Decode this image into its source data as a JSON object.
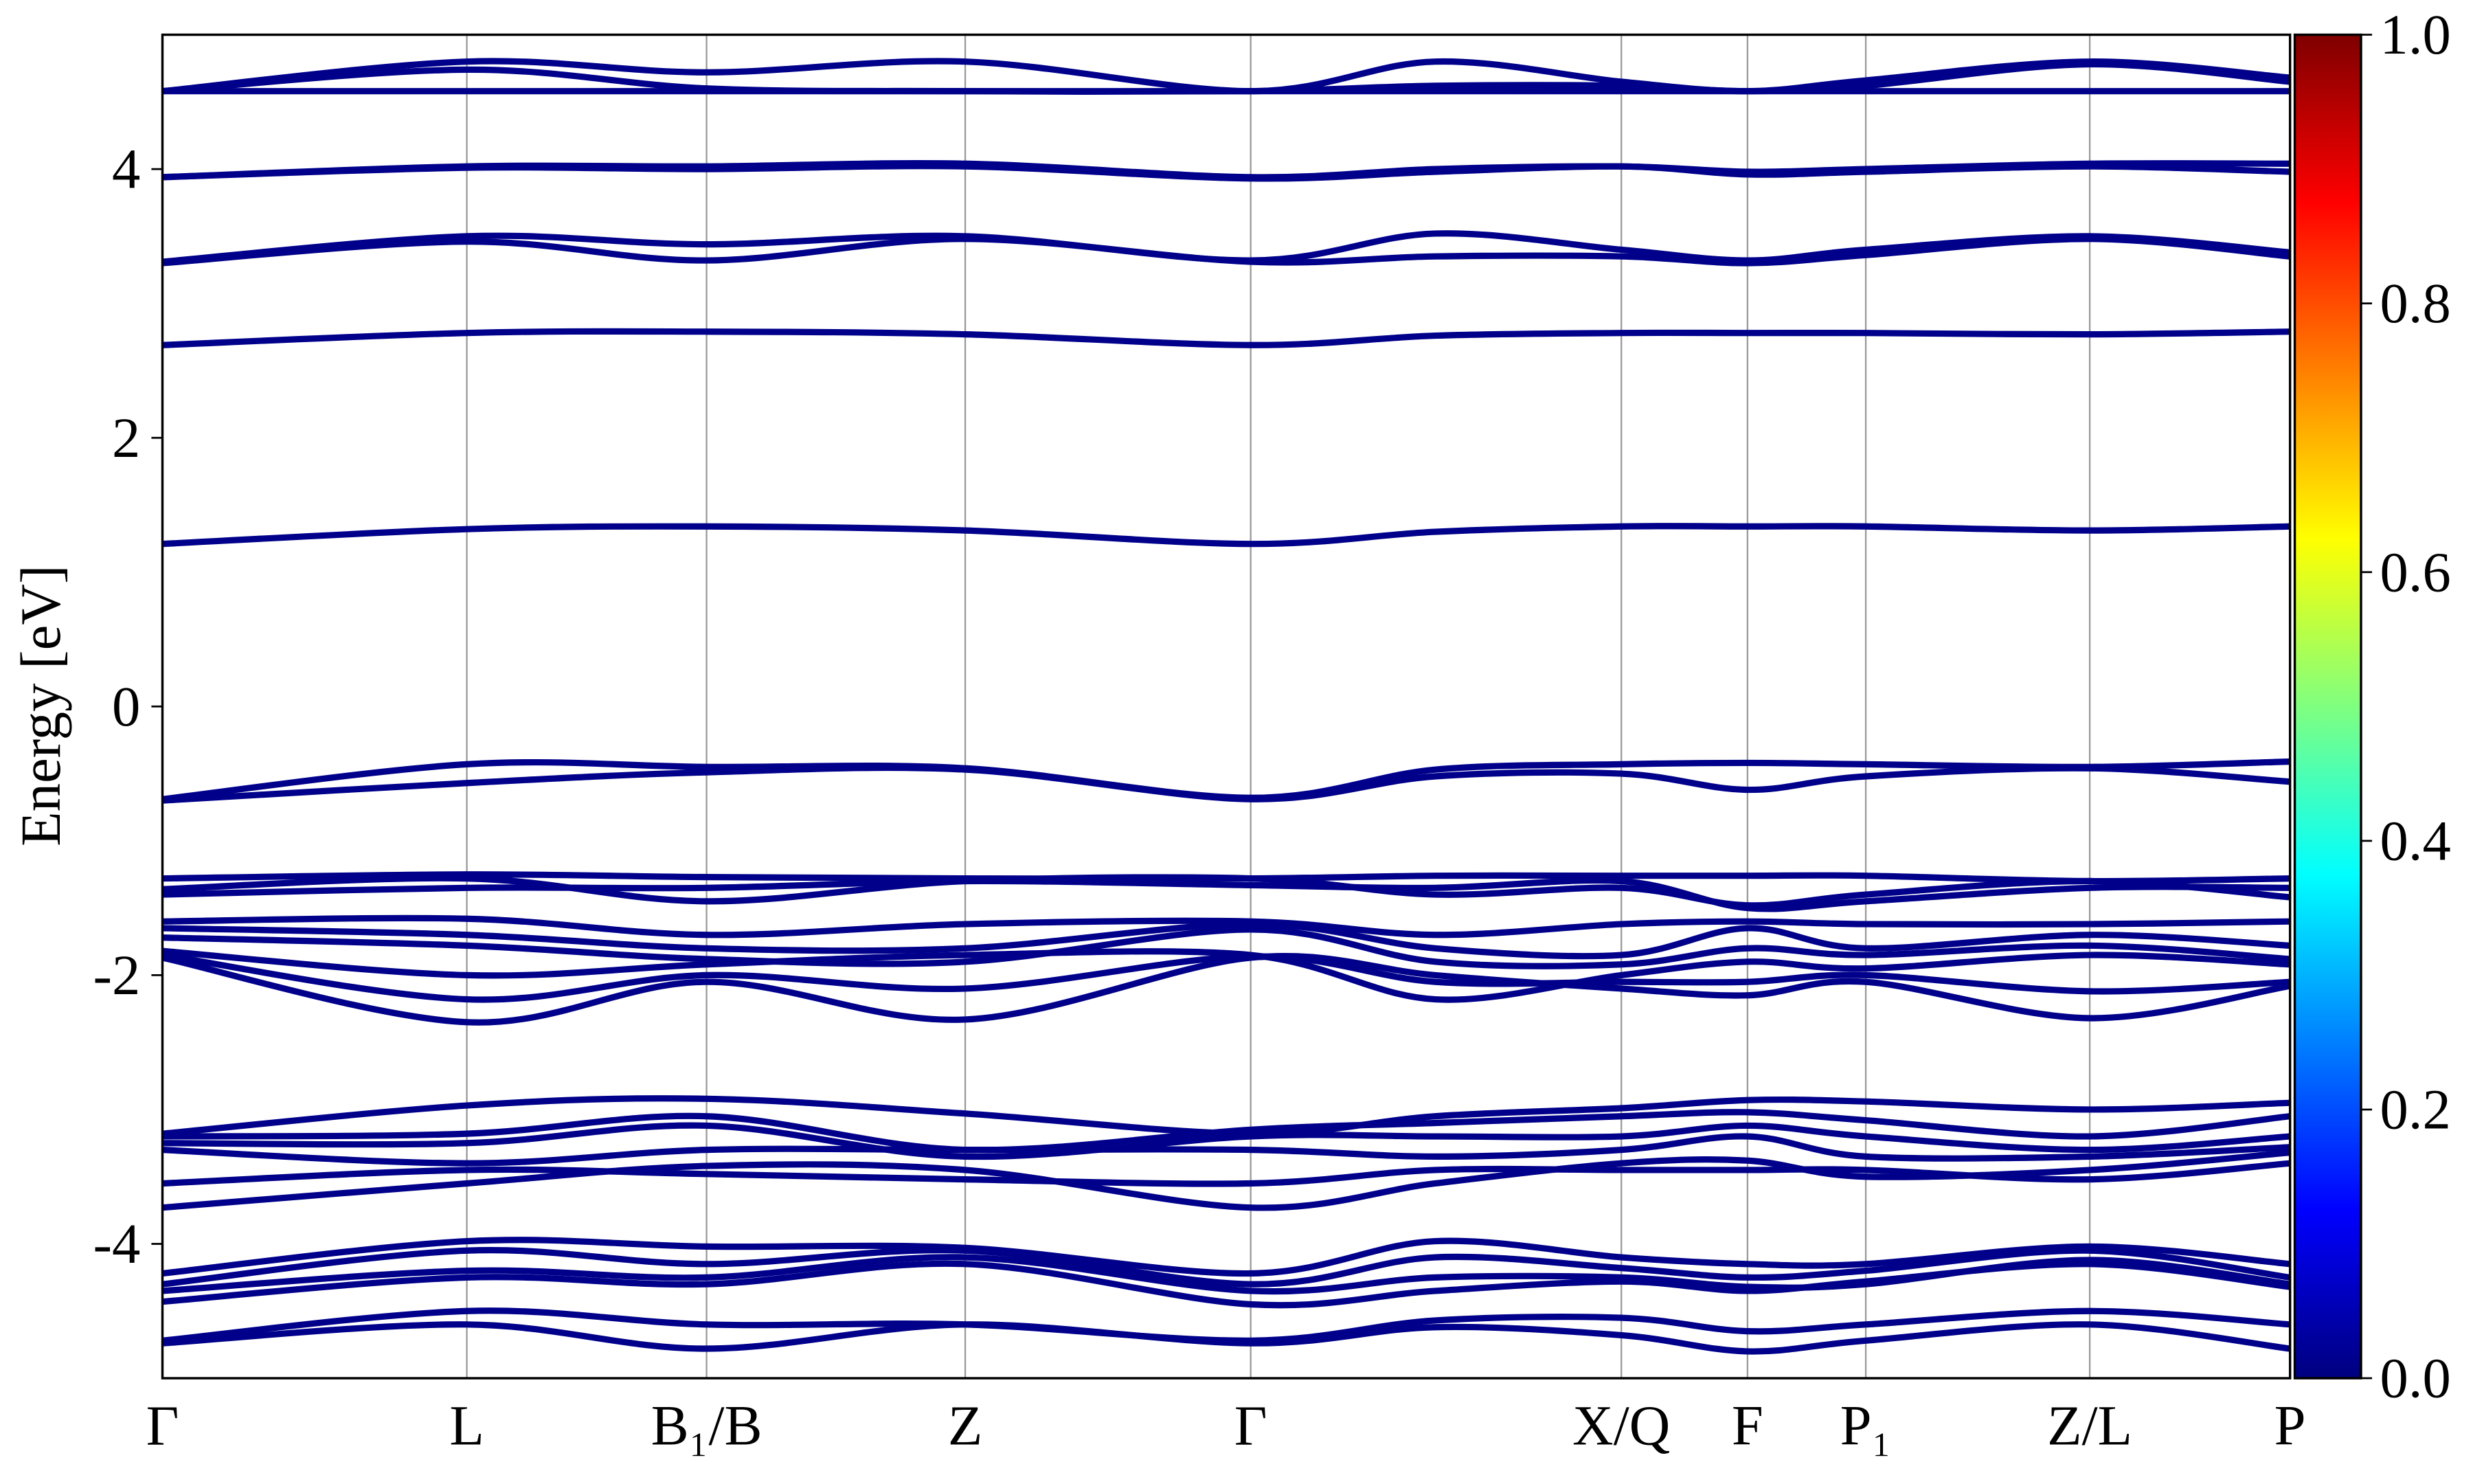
{
  "chart_data": {
    "type": "line",
    "y_label": "Energy [eV]",
    "x": [
      0,
      1.93,
      3.45,
      5.09,
      6.9,
      8.07,
      9.25,
      10.05,
      10.8,
      12.22,
      13.49
    ],
    "xlim": [
      0,
      13.49
    ],
    "xticks": [
      {
        "value": 0,
        "label": "Γ"
      },
      {
        "value": 1.93,
        "label": "L"
      },
      {
        "value": 3.45,
        "label": "B₁/B"
      },
      {
        "value": 5.09,
        "label": "Z"
      },
      {
        "value": 6.9,
        "label": "Γ"
      },
      {
        "value": 9.25,
        "label": "X/Q"
      },
      {
        "value": 10.05,
        "label": "F"
      },
      {
        "value": 10.8,
        "label": "P₁"
      },
      {
        "value": 12.22,
        "label": "Z/L"
      },
      {
        "value": 13.49,
        "label": "P"
      }
    ],
    "ylim": [
      -5,
      5
    ],
    "yticks": [
      -4,
      -2,
      0,
      2,
      4
    ],
    "color": "#00008b",
    "colorbar": {
      "colormap": "jet",
      "lim": [
        0,
        1
      ],
      "ticks": [
        {
          "value": 0,
          "label": "0.0"
        },
        {
          "value": 0.2,
          "label": "0.2"
        },
        {
          "value": 0.4,
          "label": "0.4"
        },
        {
          "value": 0.6,
          "label": "0.6"
        },
        {
          "value": 0.8,
          "label": "0.8"
        },
        {
          "value": 1,
          "label": "1.0"
        }
      ]
    },
    "series": [
      {
        "values": [
          4.58,
          4.8,
          4.72,
          4.8,
          4.58,
          4.8,
          4.65,
          4.58,
          4.66,
          4.8,
          4.68
        ]
      },
      {
        "values": [
          4.58,
          4.74,
          4.6,
          4.58,
          4.58,
          4.62,
          4.62,
          4.58,
          4.62,
          4.78,
          4.65
        ]
      },
      {
        "values": [
          4.58,
          4.58,
          4.58,
          4.58,
          4.58,
          4.58,
          4.58,
          4.58,
          4.58,
          4.58,
          4.58
        ]
      },
      {
        "values": [
          3.94,
          4.02,
          4.02,
          4.04,
          3.94,
          4.0,
          4.02,
          3.98,
          4.0,
          4.04,
          4.04
        ]
      },
      {
        "values": [
          3.94,
          4.01,
          4.0,
          4.02,
          3.93,
          3.98,
          4.02,
          3.96,
          3.98,
          4.02,
          3.98
        ]
      },
      {
        "values": [
          3.31,
          3.5,
          3.44,
          3.5,
          3.32,
          3.52,
          3.4,
          3.32,
          3.4,
          3.5,
          3.38
        ]
      },
      {
        "values": [
          3.3,
          3.46,
          3.32,
          3.48,
          3.31,
          3.35,
          3.35,
          3.3,
          3.36,
          3.48,
          3.35
        ]
      },
      {
        "values": [
          2.69,
          2.78,
          2.79,
          2.77,
          2.69,
          2.76,
          2.78,
          2.78,
          2.78,
          2.77,
          2.79
        ]
      },
      {
        "values": [
          1.21,
          1.32,
          1.34,
          1.31,
          1.21,
          1.3,
          1.34,
          1.34,
          1.34,
          1.31,
          1.34
        ]
      },
      {
        "values": [
          -0.69,
          -0.43,
          -0.45,
          -0.46,
          -0.68,
          -0.47,
          -0.43,
          -0.42,
          -0.43,
          -0.45,
          -0.41
        ]
      },
      {
        "values": [
          -0.7,
          -0.57,
          -0.49,
          -0.47,
          -0.69,
          -0.52,
          -0.5,
          -0.62,
          -0.52,
          -0.46,
          -0.56
        ]
      },
      {
        "values": [
          -1.28,
          -1.25,
          -1.27,
          -1.28,
          -1.28,
          -1.26,
          -1.26,
          -1.26,
          -1.26,
          -1.3,
          -1.28
        ]
      },
      {
        "values": [
          -1.36,
          -1.28,
          -1.45,
          -1.3,
          -1.28,
          -1.4,
          -1.35,
          -1.48,
          -1.4,
          -1.3,
          -1.42
        ]
      },
      {
        "values": [
          -1.4,
          -1.35,
          -1.35,
          -1.3,
          -1.33,
          -1.35,
          -1.3,
          -1.5,
          -1.45,
          -1.35,
          -1.35
        ]
      },
      {
        "values": [
          -1.6,
          -1.58,
          -1.7,
          -1.62,
          -1.6,
          -1.7,
          -1.62,
          -1.6,
          -1.62,
          -1.62,
          -1.6
        ]
      },
      {
        "values": [
          -1.65,
          -1.7,
          -1.8,
          -1.8,
          -1.62,
          -1.8,
          -1.85,
          -1.65,
          -1.8,
          -1.7,
          -1.78
        ]
      },
      {
        "values": [
          -1.72,
          -1.78,
          -1.88,
          -1.9,
          -1.66,
          -1.9,
          -1.92,
          -1.8,
          -1.85,
          -1.78,
          -1.88
        ]
      },
      {
        "values": [
          -1.82,
          -2.0,
          -1.92,
          -1.85,
          -1.85,
          -2.18,
          -2.0,
          -1.9,
          -1.95,
          -1.85,
          -1.92
        ]
      },
      {
        "values": [
          -1.85,
          -2.18,
          -2.0,
          -2.1,
          -1.86,
          -2.05,
          -2.05,
          -2.05,
          -2.0,
          -2.12,
          -2.05
        ]
      },
      {
        "values": [
          -1.87,
          -2.35,
          -2.05,
          -2.33,
          -1.87,
          -2.0,
          -2.1,
          -2.15,
          -2.05,
          -2.32,
          -2.08
        ]
      },
      {
        "values": [
          -3.18,
          -2.97,
          -2.92,
          -3.03,
          -3.18,
          -3.05,
          -2.99,
          -2.93,
          -2.94,
          -3.0,
          -2.95
        ]
      },
      {
        "values": [
          -3.2,
          -3.18,
          -3.05,
          -3.3,
          -3.15,
          -3.1,
          -3.05,
          -3.02,
          -3.08,
          -3.2,
          -3.05
        ]
      },
      {
        "values": [
          -3.25,
          -3.25,
          -3.12,
          -3.35,
          -3.2,
          -3.2,
          -3.2,
          -3.12,
          -3.2,
          -3.3,
          -3.2
        ]
      },
      {
        "values": [
          -3.3,
          -3.4,
          -3.3,
          -3.3,
          -3.3,
          -3.35,
          -3.3,
          -3.2,
          -3.35,
          -3.35,
          -3.28
        ]
      },
      {
        "values": [
          -3.55,
          -3.45,
          -3.48,
          -3.52,
          -3.55,
          -3.45,
          -3.45,
          -3.45,
          -3.45,
          -3.52,
          -3.4
        ]
      },
      {
        "values": [
          -3.73,
          -3.55,
          -3.42,
          -3.45,
          -3.73,
          -3.55,
          -3.4,
          -3.38,
          -3.5,
          -3.45,
          -3.32
        ]
      },
      {
        "values": [
          -4.22,
          -3.98,
          -4.02,
          -4.03,
          -4.22,
          -3.98,
          -4.1,
          -4.15,
          -4.15,
          -4.02,
          -4.15
        ]
      },
      {
        "values": [
          -4.3,
          -4.05,
          -4.15,
          -4.05,
          -4.3,
          -4.1,
          -4.18,
          -4.25,
          -4.2,
          -4.05,
          -4.25
        ]
      },
      {
        "values": [
          -4.35,
          -4.2,
          -4.25,
          -4.1,
          -4.35,
          -4.25,
          -4.25,
          -4.32,
          -4.3,
          -4.12,
          -4.3
        ]
      },
      {
        "values": [
          -4.43,
          -4.25,
          -4.3,
          -4.15,
          -4.45,
          -4.35,
          -4.28,
          -4.35,
          -4.28,
          -4.15,
          -4.32
        ]
      },
      {
        "values": [
          -4.72,
          -4.5,
          -4.6,
          -4.6,
          -4.72,
          -4.57,
          -4.55,
          -4.65,
          -4.6,
          -4.5,
          -4.6
        ]
      },
      {
        "values": [
          -4.74,
          -4.6,
          -4.78,
          -4.6,
          -4.74,
          -4.62,
          -4.68,
          -4.8,
          -4.72,
          -4.6,
          -4.78
        ]
      }
    ]
  }
}
